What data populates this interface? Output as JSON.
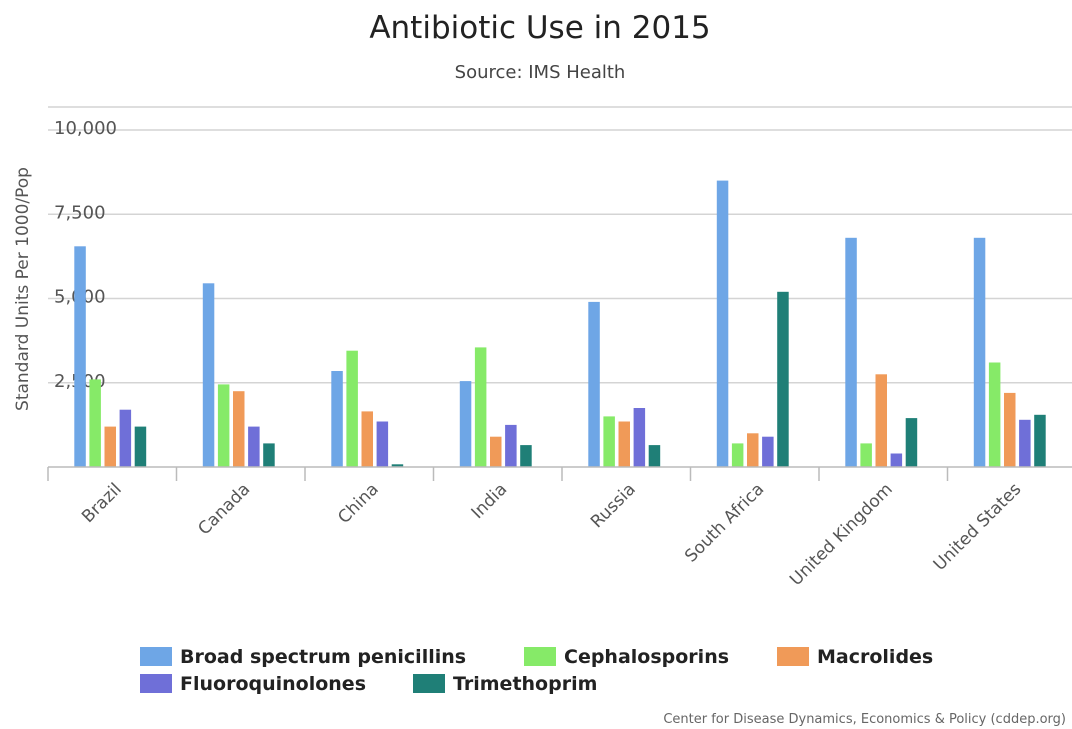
{
  "chart_data": {
    "type": "bar",
    "title": "Antibiotic Use in 2015",
    "subtitle": "Source: IMS Health",
    "ylabel": "Standard Units Per 1000/Pop",
    "xlabel": "",
    "ylim": [
      0,
      10000
    ],
    "yticks": [
      "2,500",
      "5,000",
      "7,500",
      "10,000"
    ],
    "ytick_values": [
      2500,
      5000,
      7500,
      10000
    ],
    "grid": true,
    "legend_position": "bottom",
    "credit": "Center for Disease Dynamics, Economics & Policy (cddep.org)",
    "categories": [
      "Brazil",
      "Canada",
      "China",
      "India",
      "Russia",
      "South Africa",
      "United Kingdom",
      "United States"
    ],
    "series": [
      {
        "name": "Broad spectrum penicillins",
        "color": "#6ea6e6",
        "values": [
          6550,
          5450,
          2850,
          2550,
          4900,
          8500,
          6800,
          6800
        ]
      },
      {
        "name": "Cephalosporins",
        "color": "#86ea68",
        "values": [
          2600,
          2450,
          3450,
          3550,
          1500,
          700,
          700,
          3100
        ]
      },
      {
        "name": "Macrolides",
        "color": "#f09a58",
        "values": [
          1200,
          2250,
          1650,
          900,
          1350,
          1000,
          2750,
          2200
        ]
      },
      {
        "name": "Fluoroquinolones",
        "color": "#6f6fd8",
        "values": [
          1700,
          1200,
          1350,
          1250,
          1750,
          900,
          400,
          1400
        ]
      },
      {
        "name": "Trimethoprim",
        "color": "#1f7f77",
        "values": [
          1200,
          700,
          80,
          650,
          650,
          5200,
          1450,
          1550
        ]
      }
    ]
  }
}
